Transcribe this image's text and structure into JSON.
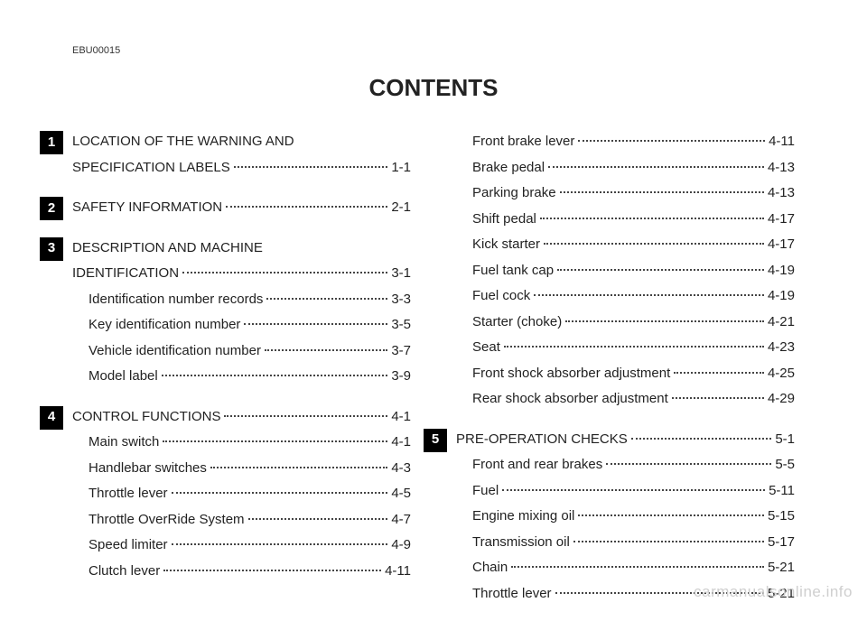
{
  "doc_code": "EBU00015",
  "title": "CONTENTS",
  "watermark": "carmanualsonline.info",
  "columns": [
    [
      {
        "badge": "1",
        "lines": [
          {
            "level": 1,
            "label": "LOCATION OF THE WARNING AND",
            "page": ""
          },
          {
            "level": 1,
            "label": "SPECIFICATION LABELS",
            "page": "1-1"
          }
        ]
      },
      {
        "badge": "2",
        "lines": [
          {
            "level": 1,
            "label": "SAFETY INFORMATION",
            "page": "2-1"
          }
        ]
      },
      {
        "badge": "3",
        "lines": [
          {
            "level": 1,
            "label": "DESCRIPTION AND MACHINE",
            "page": ""
          },
          {
            "level": 1,
            "label": "IDENTIFICATION",
            "page": "3-1"
          },
          {
            "level": 2,
            "label": "Identification number records",
            "page": "3-3"
          },
          {
            "level": 2,
            "label": "Key identification number",
            "page": "3-5"
          },
          {
            "level": 2,
            "label": "Vehicle identification number",
            "page": "3-7"
          },
          {
            "level": 2,
            "label": "Model label",
            "page": "3-9"
          }
        ]
      },
      {
        "badge": "4",
        "lines": [
          {
            "level": 1,
            "label": "CONTROL FUNCTIONS",
            "page": "4-1"
          },
          {
            "level": 2,
            "label": "Main switch",
            "page": "4-1"
          },
          {
            "level": 2,
            "label": "Handlebar switches",
            "page": "4-3"
          },
          {
            "level": 2,
            "label": "Throttle lever",
            "page": "4-5"
          },
          {
            "level": 2,
            "label": "Throttle OverRide System",
            "page": "4-7"
          },
          {
            "level": 2,
            "label": "Speed limiter",
            "page": "4-9"
          },
          {
            "level": 2,
            "label": "Clutch lever",
            "page": "4-11"
          }
        ]
      }
    ],
    [
      {
        "badge": "",
        "lines": [
          {
            "level": 2,
            "label": "Front brake lever",
            "page": "4-11"
          },
          {
            "level": 2,
            "label": "Brake pedal",
            "page": "4-13"
          },
          {
            "level": 2,
            "label": "Parking brake",
            "page": "4-13"
          },
          {
            "level": 2,
            "label": "Shift pedal",
            "page": "4-17"
          },
          {
            "level": 2,
            "label": "Kick starter",
            "page": "4-17"
          },
          {
            "level": 2,
            "label": "Fuel tank cap",
            "page": "4-19"
          },
          {
            "level": 2,
            "label": "Fuel cock",
            "page": "4-19"
          },
          {
            "level": 2,
            "label": "Starter (choke)",
            "page": "4-21"
          },
          {
            "level": 2,
            "label": "Seat",
            "page": "4-23"
          },
          {
            "level": 2,
            "label": "Front shock absorber adjustment",
            "page": "4-25"
          },
          {
            "level": 2,
            "label": "Rear shock absorber adjustment",
            "page": "4-29"
          }
        ]
      },
      {
        "badge": "5",
        "lines": [
          {
            "level": 1,
            "label": "PRE-OPERATION CHECKS",
            "page": "5-1"
          },
          {
            "level": 2,
            "label": "Front and rear brakes",
            "page": "5-5"
          },
          {
            "level": 2,
            "label": "Fuel",
            "page": "5-11"
          },
          {
            "level": 2,
            "label": "Engine mixing oil",
            "page": "5-15"
          },
          {
            "level": 2,
            "label": "Transmission oil",
            "page": "5-17"
          },
          {
            "level": 2,
            "label": "Chain",
            "page": "5-21"
          },
          {
            "level": 2,
            "label": "Throttle lever",
            "page": "5-21"
          }
        ]
      }
    ]
  ]
}
